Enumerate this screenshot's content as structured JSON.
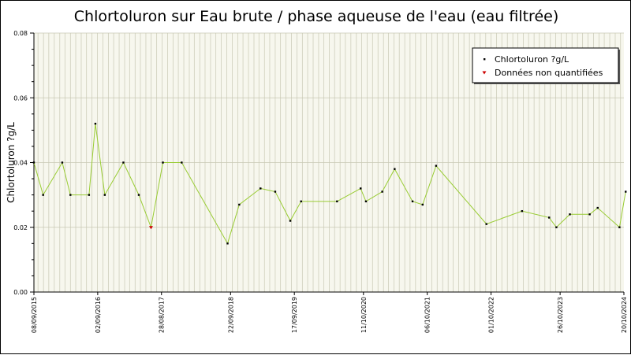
{
  "chart_data": {
    "type": "line",
    "title": "Chlortoluron sur Eau brute / phase aqueuse de l'eau (eau filtrée)",
    "ylabel": "Chlortoluron ?g/L",
    "xlabel": "",
    "ylim": [
      0,
      0.08
    ],
    "y_ticks": [
      "0.00",
      "0.02",
      "0.04",
      "0.06",
      "0.08"
    ],
    "x_range": [
      "2015-09-08",
      "2024-10-20"
    ],
    "x_tick_labels": [
      {
        "date": "2015-09-08",
        "label": "08/09/2015"
      },
      {
        "date": "2016-09-02",
        "label": "02/09/2016"
      },
      {
        "date": "2017-08-28",
        "label": "28/08/2017"
      },
      {
        "date": "2018-09-22",
        "label": "22/09/2018"
      },
      {
        "date": "2019-09-17",
        "label": "17/09/2019"
      },
      {
        "date": "2020-10-11",
        "label": "11/10/2020"
      },
      {
        "date": "2021-10-06",
        "label": "06/10/2021"
      },
      {
        "date": "2022-10-01",
        "label": "01/10/2022"
      },
      {
        "date": "2023-10-26",
        "label": "26/10/2023"
      },
      {
        "date": "2024-10-20",
        "label": "20/10/2024"
      }
    ],
    "grid": true,
    "legend_position": "top-right",
    "colors": {
      "line": "#99cc33",
      "marker": "#000000",
      "unquantified": "#cc0000",
      "plot_bg": "#f7f7ee",
      "grid": "#c8c8b4"
    },
    "series": [
      {
        "name": "Chlortoluron ?g/L",
        "points": [
          {
            "x": "2015-09-08",
            "y": 0.04
          },
          {
            "x": "2015-10-30",
            "y": 0.03
          },
          {
            "x": "2016-02-15",
            "y": 0.04
          },
          {
            "x": "2016-04-01",
            "y": 0.03
          },
          {
            "x": "2016-07-15",
            "y": 0.03
          },
          {
            "x": "2016-08-20",
            "y": 0.052
          },
          {
            "x": "2016-10-12",
            "y": 0.03
          },
          {
            "x": "2017-01-25",
            "y": 0.04
          },
          {
            "x": "2017-04-22",
            "y": 0.03
          },
          {
            "x": "2017-06-30",
            "y": 0.02,
            "unquantified": true
          },
          {
            "x": "2017-09-05",
            "y": 0.04
          },
          {
            "x": "2017-12-20",
            "y": 0.04
          },
          {
            "x": "2018-09-05",
            "y": 0.015
          },
          {
            "x": "2018-11-10",
            "y": 0.027
          },
          {
            "x": "2019-03-10",
            "y": 0.032
          },
          {
            "x": "2019-06-01",
            "y": 0.031
          },
          {
            "x": "2019-08-25",
            "y": 0.022
          },
          {
            "x": "2019-10-25",
            "y": 0.028
          },
          {
            "x": "2020-05-15",
            "y": 0.028
          },
          {
            "x": "2020-09-25",
            "y": 0.032
          },
          {
            "x": "2020-10-25",
            "y": 0.028
          },
          {
            "x": "2021-01-25",
            "y": 0.031
          },
          {
            "x": "2021-04-05",
            "y": 0.038
          },
          {
            "x": "2021-07-15",
            "y": 0.028
          },
          {
            "x": "2021-09-10",
            "y": 0.027
          },
          {
            "x": "2021-11-25",
            "y": 0.039
          },
          {
            "x": "2022-09-05",
            "y": 0.021
          },
          {
            "x": "2023-03-25",
            "y": 0.025
          },
          {
            "x": "2023-08-25",
            "y": 0.023
          },
          {
            "x": "2023-10-05",
            "y": 0.02
          },
          {
            "x": "2023-12-20",
            "y": 0.024
          },
          {
            "x": "2024-04-10",
            "y": 0.024
          },
          {
            "x": "2024-05-25",
            "y": 0.026
          },
          {
            "x": "2024-09-25",
            "y": 0.02
          },
          {
            "x": "2024-10-30",
            "y": 0.031
          }
        ]
      },
      {
        "name": "Données non quantifiées",
        "marker_only": true
      }
    ]
  }
}
